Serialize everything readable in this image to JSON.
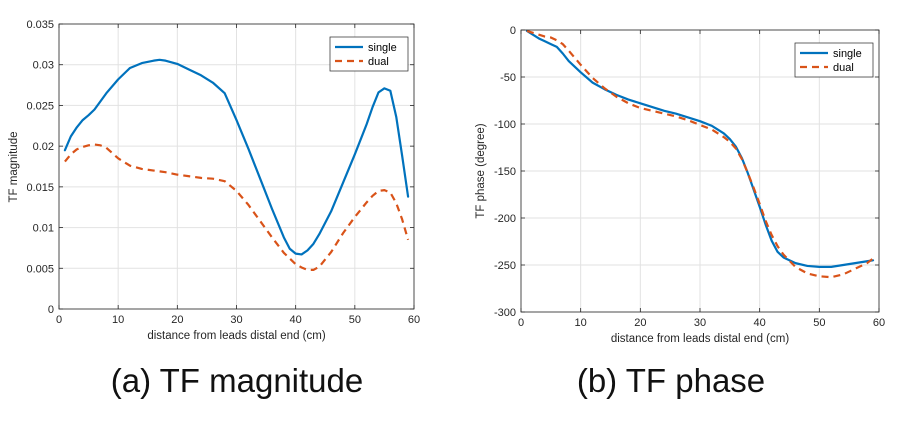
{
  "chart_data": [
    {
      "type": "line",
      "title": "",
      "caption": "(a) TF magnitude",
      "xlabel": "distance from leads distal end (cm)",
      "ylabel": "TF magnitude",
      "xlim": [
        0,
        60
      ],
      "ylim": [
        0,
        0.035
      ],
      "xticks": [
        0,
        10,
        20,
        30,
        40,
        50,
        60
      ],
      "yticks": [
        0,
        0.005,
        0.01,
        0.015,
        0.02,
        0.025,
        0.03,
        0.035
      ],
      "ytick_labels": [
        "0",
        "0.005",
        "0.01",
        "0.015",
        "0.02",
        "0.025",
        "0.03",
        "0.035"
      ],
      "grid": true,
      "legend": "top-right",
      "series": [
        {
          "name": "single",
          "color": "#0072BD",
          "dash": "solid",
          "x": [
            1,
            2,
            3,
            4,
            5,
            6,
            7,
            8,
            10,
            12,
            14,
            16,
            17,
            18,
            20,
            22,
            24,
            26,
            28,
            30,
            32,
            34,
            36,
            38,
            39,
            40,
            41,
            42,
            43,
            44,
            46,
            48,
            50,
            52,
            53,
            54,
            55,
            56,
            57,
            58,
            59
          ],
          "y": [
            0.0195,
            0.0212,
            0.0223,
            0.0232,
            0.0238,
            0.0245,
            0.0255,
            0.0265,
            0.0282,
            0.0296,
            0.0302,
            0.0305,
            0.0306,
            0.0305,
            0.0301,
            0.0294,
            0.0287,
            0.0278,
            0.0265,
            0.0232,
            0.0197,
            0.016,
            0.0123,
            0.0088,
            0.0074,
            0.0068,
            0.0067,
            0.0072,
            0.008,
            0.0092,
            0.012,
            0.0155,
            0.019,
            0.0227,
            0.0248,
            0.0266,
            0.0271,
            0.0268,
            0.0236,
            0.0188,
            0.0138
          ]
        },
        {
          "name": "dual",
          "color": "#D95319",
          "dash": "dashed",
          "x": [
            1,
            2,
            3,
            4,
            5,
            6,
            7,
            8,
            10,
            12,
            14,
            16,
            18,
            20,
            22,
            24,
            26,
            28,
            30,
            32,
            34,
            36,
            38,
            40,
            41,
            42,
            43,
            44,
            46,
            48,
            50,
            52,
            53,
            54,
            55,
            56,
            57,
            58,
            59
          ],
          "y": [
            0.0181,
            0.019,
            0.0196,
            0.0199,
            0.0201,
            0.0202,
            0.0201,
            0.0198,
            0.0185,
            0.0176,
            0.0172,
            0.017,
            0.0168,
            0.0165,
            0.0163,
            0.0161,
            0.016,
            0.0157,
            0.0145,
            0.0128,
            0.0108,
            0.0088,
            0.0069,
            0.0055,
            0.0051,
            0.0048,
            0.0048,
            0.0052,
            0.007,
            0.0093,
            0.0113,
            0.0131,
            0.0139,
            0.0145,
            0.0146,
            0.0143,
            0.013,
            0.011,
            0.0085
          ]
        }
      ]
    },
    {
      "type": "line",
      "title": "",
      "caption": "(b) TF phase",
      "xlabel": "distance from leads distal end (cm)",
      "ylabel": "TF phase (degree)",
      "xlim": [
        0,
        60
      ],
      "ylim": [
        -300,
        0
      ],
      "xticks": [
        0,
        10,
        20,
        30,
        40,
        50,
        60
      ],
      "yticks": [
        -300,
        -250,
        -200,
        -150,
        -100,
        -50,
        0
      ],
      "ytick_labels": [
        "-300",
        "-250",
        "-200",
        "-150",
        "-100",
        "-50",
        "0"
      ],
      "grid": true,
      "legend": "top-right",
      "series": [
        {
          "name": "single",
          "color": "#0072BD",
          "dash": "solid",
          "x": [
            1,
            2,
            3,
            4,
            5,
            6,
            7,
            8,
            10,
            12,
            14,
            16,
            18,
            20,
            22,
            24,
            26,
            28,
            30,
            32,
            34,
            35,
            36,
            37,
            38,
            39,
            40,
            41,
            42,
            43,
            44,
            46,
            48,
            50,
            52,
            54,
            56,
            58,
            59
          ],
          "y": [
            -1,
            -5,
            -9,
            -12,
            -15,
            -18,
            -25,
            -33,
            -45,
            -56,
            -63,
            -69,
            -74,
            -78,
            -82,
            -86,
            -89,
            -93,
            -97,
            -102,
            -110,
            -116,
            -124,
            -136,
            -152,
            -170,
            -188,
            -207,
            -224,
            -236,
            -242,
            -248,
            -251,
            -252,
            -252,
            -250,
            -248,
            -246,
            -245
          ]
        },
        {
          "name": "dual",
          "color": "#D95319",
          "dash": "dashed",
          "x": [
            1,
            2,
            3,
            4,
            5,
            6,
            7,
            8,
            10,
            12,
            14,
            16,
            18,
            20,
            22,
            24,
            26,
            28,
            30,
            32,
            34,
            35,
            36,
            37,
            38,
            39,
            40,
            41,
            42,
            43,
            44,
            46,
            48,
            50,
            52,
            54,
            56,
            58,
            59
          ],
          "y": [
            -1,
            -3,
            -5,
            -7,
            -8,
            -11,
            -15,
            -22,
            -37,
            -51,
            -62,
            -71,
            -78,
            -83,
            -86,
            -89,
            -92,
            -96,
            -101,
            -106,
            -114,
            -119,
            -126,
            -137,
            -152,
            -168,
            -185,
            -203,
            -218,
            -230,
            -239,
            -252,
            -259,
            -262,
            -263,
            -260,
            -254,
            -248,
            -243
          ]
        }
      ]
    }
  ]
}
